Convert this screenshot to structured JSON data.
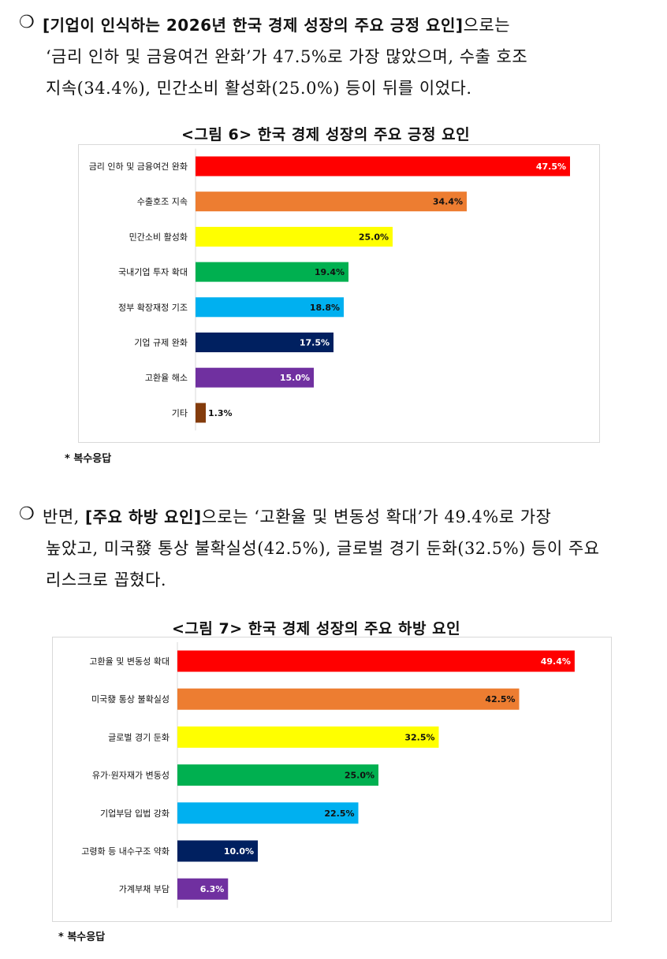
{
  "section1": {
    "bullet": "❍",
    "line1_bold": "[기업이 인식하는 2026년 한국 경제 성장의 주요 긍정 요인]",
    "line1_rest": "으로는",
    "line2": "‘금리 인하 및 금융여건 완화’가 47.5%로 가장 많았으며, 수출 호조",
    "line3": "지속(34.4%), 민간소비 활성화(25.0%) 등이 뒤를 이었다."
  },
  "section2": {
    "bullet": "❍",
    "line1_pre": "반면, ",
    "line1_bold": "[주요 하방 요인]",
    "line1_rest": "으로는 ‘고환율 및 변동성 확대’가 49.4%로 가장",
    "line2": "높았고, 미국發 통상 불확실성(42.5%), 글로벌 경기 둔화(32.5%) 등이 주요",
    "line3": "리스크로 꼽혔다."
  },
  "chart_data": [
    {
      "type": "bar",
      "orientation": "horizontal",
      "title": "<그림 6> 한국 경제 성장의 주요 긍정 요인",
      "categories": [
        "금리 인하 및 금융여건 완화",
        "수출호조 지속",
        "민간소비 활성화",
        "국내기업 투자 확대",
        "정부 확장재정 기조",
        "기업 규제 완화",
        "고환율 해소",
        "기타"
      ],
      "values": [
        47.5,
        34.4,
        25.0,
        19.4,
        18.8,
        17.5,
        15.0,
        1.3
      ],
      "value_labels": [
        "47.5%",
        "34.4%",
        "25.0%",
        "19.4%",
        "18.8%",
        "17.5%",
        "15.0%",
        "1.3%"
      ],
      "colors": [
        "#ff0000",
        "#ed7d31",
        "#ffff00",
        "#00b050",
        "#00b0f0",
        "#002060",
        "#7030a0",
        "#843c0c"
      ],
      "label_colors": [
        "#ffffff",
        "#111111",
        "#111111",
        "#111111",
        "#111111",
        "#ffffff",
        "#ffffff",
        "#111111"
      ],
      "label_outside": [
        false,
        false,
        false,
        false,
        false,
        false,
        false,
        true
      ],
      "xlim": [
        0,
        50
      ],
      "grid": false,
      "note": "* 복수응답"
    },
    {
      "type": "bar",
      "orientation": "horizontal",
      "title": "<그림 7> 한국 경제 성장의 주요 하방 요인",
      "categories": [
        "고환율 및 변동성 확대",
        "미국發 통상 불확실성",
        "글로벌 경기 둔화",
        "유가·원자재가 변동성",
        "기업부담 입법 강화",
        "고령화 등 내수구조 약화",
        "가계부채 부담"
      ],
      "values": [
        49.4,
        42.5,
        32.5,
        25.0,
        22.5,
        10.0,
        6.3
      ],
      "value_labels": [
        "49.4%",
        "42.5%",
        "32.5%",
        "25.0%",
        "22.5%",
        "10.0%",
        "6.3%"
      ],
      "colors": [
        "#ff0000",
        "#ed7d31",
        "#ffff00",
        "#00b050",
        "#00b0f0",
        "#002060",
        "#7030a0"
      ],
      "label_colors": [
        "#ffffff",
        "#111111",
        "#111111",
        "#111111",
        "#111111",
        "#ffffff",
        "#ffffff"
      ],
      "label_outside": [
        false,
        false,
        false,
        false,
        false,
        false,
        false
      ],
      "xlim": [
        0,
        50
      ],
      "grid": false,
      "note": "* 복수응답"
    }
  ]
}
